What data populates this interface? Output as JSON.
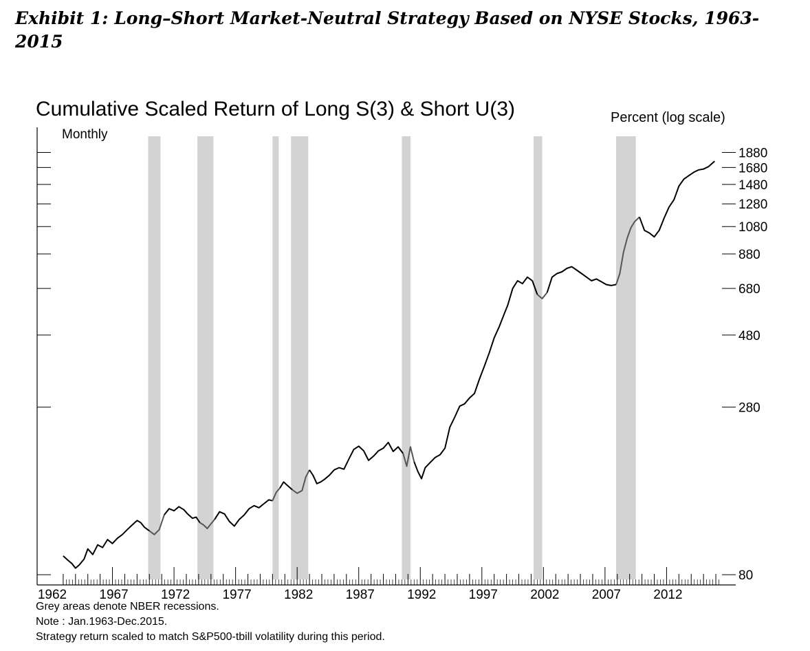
{
  "exhibit_title": "Exhibit 1: Long–Short Market-Neutral Strategy Based on NYSE Stocks, 1963-2015",
  "colors": {
    "line": "#000000",
    "line_in_recession": "#555555",
    "recession": "#d3d3d3",
    "axis": "#000000"
  },
  "notes": [
    "Grey areas denote NBER recessions.",
    "Note : Jan.1963-Dec.2015.",
    "Strategy return scaled to match S&P500-tbill volatility during this period."
  ],
  "chart_data": {
    "type": "line",
    "title": "Cumulative Scaled Return of Long S(3) & Short U(3)",
    "ylabel": "Percent (log scale)",
    "frequency_label": "Monthly",
    "y_scale": "log",
    "grid": false,
    "xlim": [
      1962,
      2016.5
    ],
    "ylim": [
      78,
      2100
    ],
    "x_ticks": [
      1962,
      1967,
      1972,
      1977,
      1982,
      1987,
      1992,
      1997,
      2002,
      2007,
      2012
    ],
    "y_ticks": [
      80,
      280,
      480,
      680,
      880,
      1080,
      1280,
      1480,
      1680,
      1880
    ],
    "recessions": [
      [
        1969.9,
        1970.9
      ],
      [
        1973.9,
        1975.2
      ],
      [
        1980.0,
        1980.5
      ],
      [
        1981.5,
        1982.9
      ],
      [
        1990.5,
        1991.2
      ],
      [
        2001.2,
        2001.9
      ],
      [
        2007.9,
        2009.5
      ]
    ],
    "series": [
      {
        "x": [
          1963.0,
          1963.4,
          1963.7,
          1964.0,
          1964.3,
          1964.7,
          1965.0,
          1965.4,
          1965.8,
          1966.2,
          1966.6,
          1967.0,
          1967.4,
          1967.8,
          1968.2,
          1968.6,
          1969.0,
          1969.3,
          1969.6,
          1970.0,
          1970.4,
          1970.8,
          1971.2,
          1971.6,
          1972.0,
          1972.4,
          1972.8,
          1973.1,
          1973.5,
          1973.8,
          1974.1,
          1974.4,
          1974.7,
          1975.0,
          1975.3,
          1975.7,
          1976.1,
          1976.5,
          1976.9,
          1977.3,
          1977.7,
          1978.1,
          1978.5,
          1978.9,
          1979.3,
          1979.7,
          1980.0,
          1980.3,
          1980.6,
          1980.9,
          1981.2,
          1981.6,
          1982.0,
          1982.4,
          1982.7,
          1983.0,
          1983.3,
          1983.6,
          1983.9,
          1984.2,
          1984.6,
          1985.0,
          1985.4,
          1985.8,
          1986.2,
          1986.6,
          1987.0,
          1987.4,
          1987.8,
          1988.2,
          1988.6,
          1989.0,
          1989.4,
          1989.8,
          1990.2,
          1990.6,
          1990.9,
          1991.2,
          1991.5,
          1991.8,
          1992.1,
          1992.4,
          1992.8,
          1993.2,
          1993.6,
          1994.0,
          1994.4,
          1994.8,
          1995.2,
          1995.6,
          1996.0,
          1996.4,
          1996.8,
          1997.2,
          1997.6,
          1998.0,
          1998.4,
          1998.8,
          1999.1,
          1999.5,
          1999.9,
          2000.3,
          2000.7,
          2001.1,
          2001.5,
          2001.9,
          2002.3,
          2002.7,
          2003.1,
          2003.5,
          2003.9,
          2004.3,
          2004.7,
          2005.1,
          2005.5,
          2005.9,
          2006.3,
          2006.7,
          2007.1,
          2007.5,
          2007.9,
          2008.2,
          2008.5,
          2008.8,
          2009.1,
          2009.4,
          2009.8,
          2010.2,
          2010.6,
          2011.0,
          2011.4,
          2011.8,
          2012.2,
          2012.6,
          2013.0,
          2013.4,
          2013.8,
          2014.2,
          2014.6,
          2015.0,
          2015.4,
          2015.9
        ],
        "y": [
          92,
          89,
          87,
          84,
          86,
          90,
          97,
          93,
          100,
          98,
          104,
          101,
          105,
          108,
          112,
          116,
          120,
          118,
          114,
          111,
          108,
          112,
          125,
          131,
          129,
          133,
          130,
          126,
          122,
          123,
          118,
          116,
          113,
          117,
          121,
          128,
          126,
          119,
          115,
          121,
          125,
          131,
          134,
          132,
          136,
          140,
          139,
          148,
          153,
          160,
          156,
          151,
          147,
          150,
          166,
          175,
          168,
          158,
          160,
          163,
          168,
          175,
          178,
          176,
          190,
          204,
          209,
          202,
          188,
          194,
          202,
          206,
          215,
          201,
          208,
          198,
          180,
          208,
          186,
          173,
          164,
          178,
          185,
          192,
          196,
          206,
          241,
          260,
          282,
          287,
          300,
          310,
          345,
          380,
          420,
          470,
          510,
          560,
          600,
          680,
          720,
          705,
          740,
          720,
          650,
          630,
          660,
          740,
          760,
          770,
          790,
          800,
          780,
          760,
          740,
          720,
          730,
          715,
          700,
          695,
          700,
          760,
          890,
          990,
          1070,
          1120,
          1160,
          1050,
          1030,
          1000,
          1050,
          1150,
          1250,
          1320,
          1460,
          1540,
          1580,
          1620,
          1650,
          1660,
          1690,
          1760
        ]
      }
    ]
  }
}
